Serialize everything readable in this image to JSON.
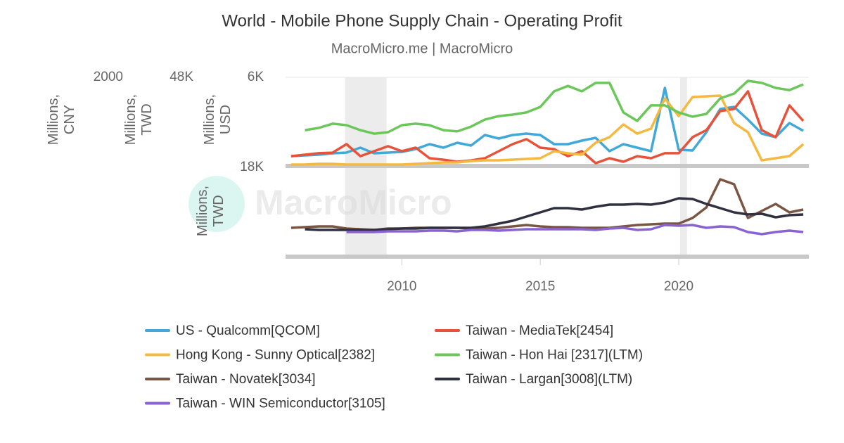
{
  "chart_data": {
    "type": "line",
    "title": "World - Mobile Phone Supply Chain - Operating Profit",
    "subtitle": "MacroMicro.me | MacroMicro",
    "watermark": "MacroMicro",
    "x": [
      2006,
      2006.5,
      2007,
      2007.5,
      2008,
      2008.5,
      2009,
      2009.5,
      2010,
      2010.5,
      2011,
      2011.5,
      2012,
      2012.5,
      2013,
      2013.5,
      2014,
      2014.5,
      2015,
      2015.5,
      2016,
      2016.5,
      2017,
      2017.5,
      2018,
      2018.5,
      2019,
      2019.5,
      2020,
      2020.5,
      2021,
      2021.5,
      2022,
      2022.5,
      2023,
      2023.5,
      2024,
      2024.5
    ],
    "xlim": [
      2005.8,
      2024.7
    ],
    "xticks": [
      2010,
      2015,
      2020
    ],
    "shaded_periods": [
      [
        2007.95,
        2009.45
      ],
      [
        2020.05,
        2020.3
      ]
    ],
    "y_axes": [
      {
        "label": "Millions, CNY",
        "ylim": [
          0,
          2000
        ],
        "yticks": [
          2000
        ],
        "panel": 0
      },
      {
        "label": "Millions, TWD",
        "ylim": [
          0,
          48000
        ],
        "yticks": [
          {
            "value": 48000,
            "label": "48K"
          }
        ],
        "panel": 0
      },
      {
        "label": "Millions, USD",
        "ylim": [
          0,
          6000
        ],
        "yticks": [
          {
            "value": 6000,
            "label": "6K"
          }
        ],
        "panel": 0
      },
      {
        "label": "Millions, TWD",
        "ylim": [
          0,
          18000
        ],
        "yticks": [
          {
            "value": 18000,
            "label": "18K"
          }
        ],
        "panel": 1
      }
    ],
    "series": [
      {
        "name": "US - Qualcomm[QCOM]",
        "color": "#41a9d8",
        "axis": 2,
        "values": [
          667,
          714,
          762,
          857,
          905,
          1238,
          857,
          905,
          952,
          1143,
          1476,
          1238,
          1571,
          1381,
          2095,
          1857,
          2095,
          2190,
          2095,
          1476,
          1476,
          1714,
          1905,
          1000,
          1476,
          1238,
          1000,
          5286,
          1095,
          1048,
          2286,
          3857,
          4000,
          3143,
          2190,
          1952,
          2905,
          2381
        ]
      },
      {
        "name": "Taiwan - MediaTek[2454]",
        "color": "#e8523a",
        "axis": 1,
        "values": [
          5300,
          6100,
          6900,
          7200,
          11800,
          5300,
          8000,
          10700,
          8000,
          9900,
          4200,
          3400,
          2300,
          3000,
          4200,
          8000,
          11800,
          14500,
          9900,
          9100,
          5300,
          8000,
          1500,
          4200,
          2300,
          5300,
          4200,
          6900,
          6900,
          15600,
          19400,
          29700,
          30900,
          40400,
          19400,
          15600,
          32800,
          24400
        ]
      },
      {
        "name": "Hong Kong - Sunny Optical[2382]",
        "color": "#f5b942",
        "axis": 0,
        "values": [
          32,
          32,
          48,
          48,
          32,
          32,
          32,
          32,
          32,
          48,
          63,
          79,
          79,
          111,
          127,
          127,
          143,
          159,
          175,
          333,
          286,
          254,
          524,
          651,
          937,
          730,
          841,
          1524,
          1127,
          1556,
          1571,
          1587,
          968,
          762,
          127,
          175,
          222,
          492
        ]
      },
      {
        "name": "Taiwan - Hon Hai [2317](LTM)",
        "color": "#6cc75a",
        "axis": 1,
        "values": [
          null,
          19400,
          20600,
          22900,
          22100,
          19400,
          17500,
          18300,
          22100,
          22900,
          22100,
          19400,
          18700,
          21300,
          25100,
          27000,
          27800,
          29000,
          32000,
          40400,
          43400,
          40400,
          45000,
          45000,
          29000,
          24400,
          32800,
          32800,
          29000,
          26700,
          28200,
          36600,
          39200,
          46100,
          45000,
          42300,
          41100,
          44200
        ]
      },
      {
        "name": "Taiwan - Novatek[3034]",
        "color": "#7b5543",
        "axis": 3,
        "values": [
          5810,
          5950,
          6090,
          6090,
          5670,
          5530,
          5380,
          5670,
          5670,
          5810,
          5810,
          5810,
          5810,
          5670,
          5670,
          5810,
          6090,
          6380,
          6090,
          5950,
          5950,
          5810,
          5810,
          5810,
          6090,
          6380,
          6520,
          6660,
          6660,
          7790,
          9920,
          15590,
          14600,
          7790,
          9210,
          10630,
          8930,
          9490
        ]
      },
      {
        "name": "Taiwan - Largan[3008](LTM)",
        "color": "#2f3140",
        "axis": 3,
        "values": [
          null,
          5530,
          5380,
          5380,
          5380,
          5380,
          5380,
          5530,
          5670,
          5670,
          5810,
          5810,
          5810,
          5810,
          6090,
          6660,
          7230,
          8080,
          8930,
          9780,
          9780,
          9490,
          10060,
          10490,
          10490,
          10630,
          10490,
          10910,
          11760,
          11620,
          10630,
          9780,
          8930,
          8500,
          8640,
          7940,
          8360,
          8500
        ]
      },
      {
        "name": "Taiwan - WIN Semiconductor[3105]",
        "color": "#8a63d2",
        "axis": 3,
        "values": [
          null,
          null,
          null,
          null,
          4960,
          4960,
          4960,
          5100,
          5100,
          5100,
          5240,
          5240,
          5100,
          5380,
          5380,
          5240,
          5380,
          5530,
          5530,
          5530,
          5530,
          5530,
          5380,
          5670,
          5810,
          5380,
          5530,
          6380,
          6230,
          6380,
          5810,
          6090,
          5950,
          4960,
          4530,
          4960,
          5240,
          4960
        ]
      }
    ]
  }
}
